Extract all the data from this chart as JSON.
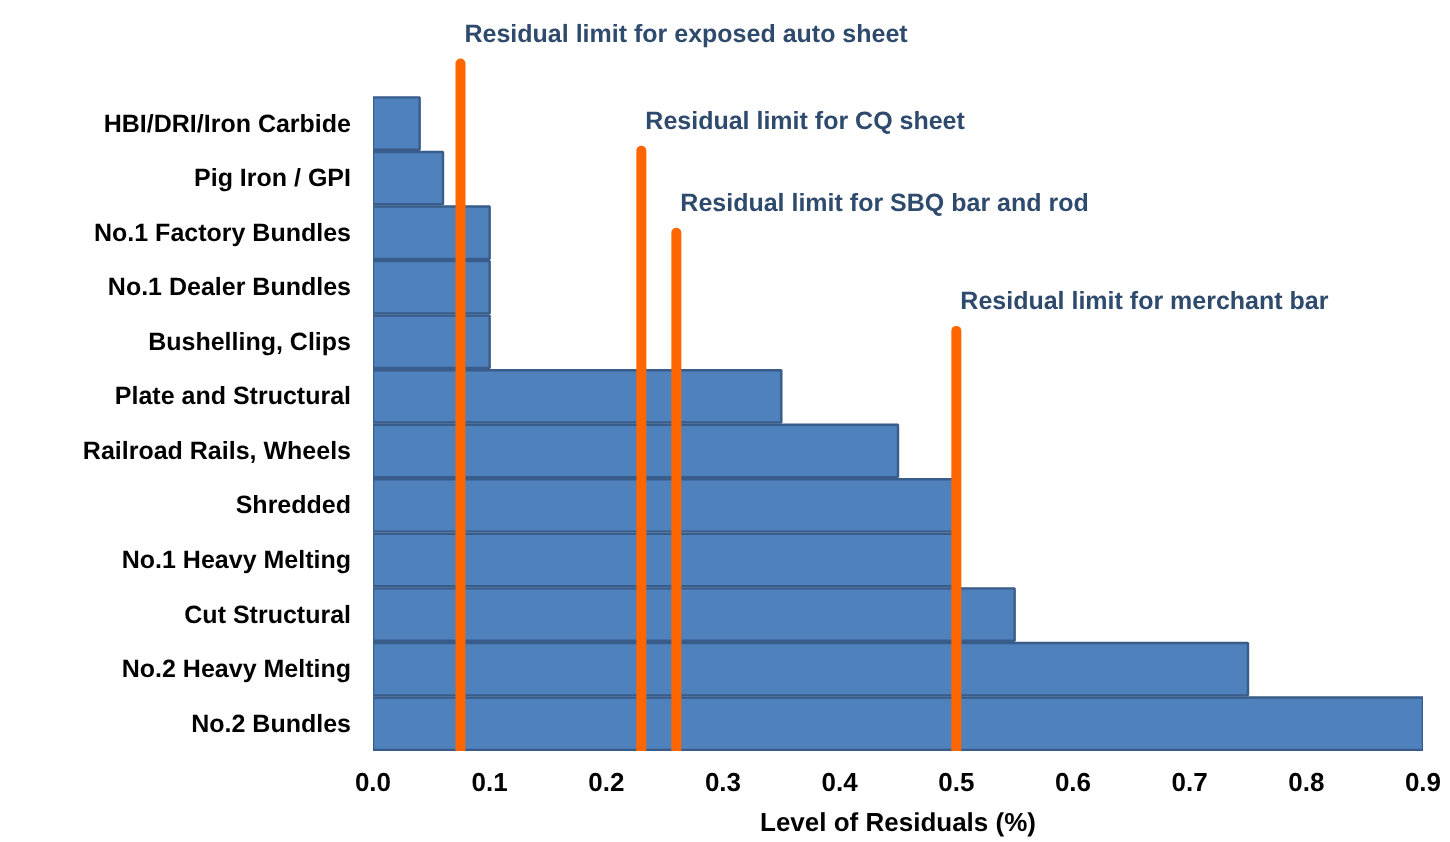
{
  "chart_data": {
    "type": "bar",
    "orientation": "horizontal",
    "xlabel": "Level of Residuals (%)",
    "categories": [
      "HBI/DRI/Iron Carbide",
      "Pig Iron / GPI",
      "No.1 Factory Bundles",
      "No.1 Dealer Bundles",
      "Bushelling, Clips",
      "Plate and Structural",
      "Railroad Rails, Wheels",
      "Shredded",
      "No.1 Heavy Melting",
      "Cut Structural",
      "No.2 Heavy Melting",
      "No.2 Bundles"
    ],
    "values": [
      0.04,
      0.06,
      0.1,
      0.1,
      0.1,
      0.35,
      0.45,
      0.5,
      0.5,
      0.55,
      0.75,
      0.9
    ],
    "color": "#4f81bd",
    "xlim": [
      0,
      0.9
    ],
    "xticks": [
      {
        "value": 0,
        "label": "0.0"
      },
      0.1,
      0.2,
      0.3,
      0.4,
      0.5,
      0.6,
      0.7,
      0.8,
      0.9
    ],
    "ref_lines": [
      {
        "axis": "x",
        "value": 0.075,
        "label": "Residual limit for exposed auto sheet",
        "color": "#ff6600"
      },
      {
        "axis": "x",
        "value": 0.23,
        "label": "Residual limit for CQ sheet",
        "color": "#ff6600"
      },
      {
        "axis": "x",
        "value": 0.26,
        "label": "Residual limit for SBQ bar and rod",
        "color": "#ff6600"
      },
      {
        "axis": "x",
        "value": 0.5,
        "label": "Residual limit for merchant bar",
        "color": "#ff6600"
      }
    ],
    "grid": false
  }
}
